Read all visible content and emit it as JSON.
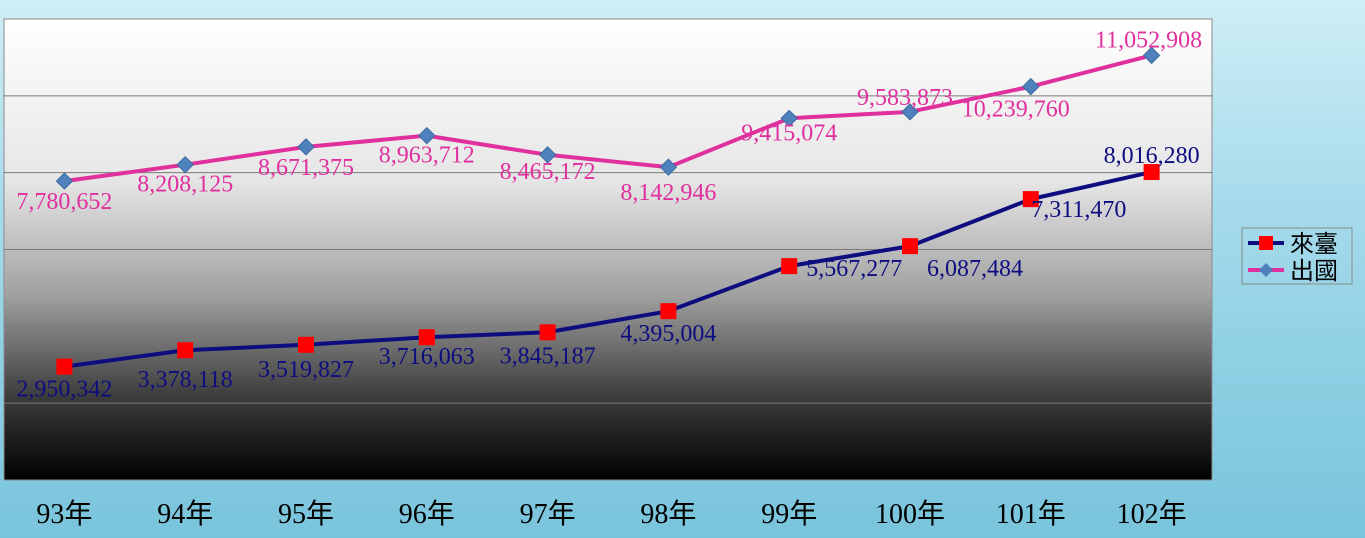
{
  "chart_data": {
    "type": "line",
    "categories": [
      "93年",
      "94年",
      "95年",
      "96年",
      "97年",
      "98年",
      "99年",
      "100年",
      "101年",
      "102年"
    ],
    "ylim": [
      0,
      12000000
    ],
    "grid": true,
    "legend": "right",
    "series": [
      {
        "name": "來臺",
        "color": "#0d0d80",
        "marker": "square",
        "marker_color": "#ff0000",
        "values": [
          2950342,
          3378118,
          3519827,
          3716063,
          3845187,
          4395004,
          5567277,
          6087484,
          7311470,
          8016280
        ],
        "labels": [
          "2,950,342",
          "3,378,118",
          "3,519,827",
          "3,716,063",
          "3,845,187",
          "4,395,004",
          "5,567,277",
          "6,087,484",
          "7,311,470",
          "8,016,280"
        ]
      },
      {
        "name": "出國",
        "color": "#e0309e",
        "marker": "diamond",
        "marker_color": "#4f81bd",
        "values": [
          7780652,
          8208125,
          8671375,
          8963712,
          8465172,
          8142946,
          9415074,
          9583873,
          10239760,
          11052908
        ],
        "labels": [
          "7,780,652",
          "8,208,125",
          "8,671,375",
          "8,963,712",
          "8,465,172",
          "8,142,946",
          "9,415,074",
          "9,583,873",
          "10,239,760",
          "11,052,908"
        ]
      }
    ]
  }
}
